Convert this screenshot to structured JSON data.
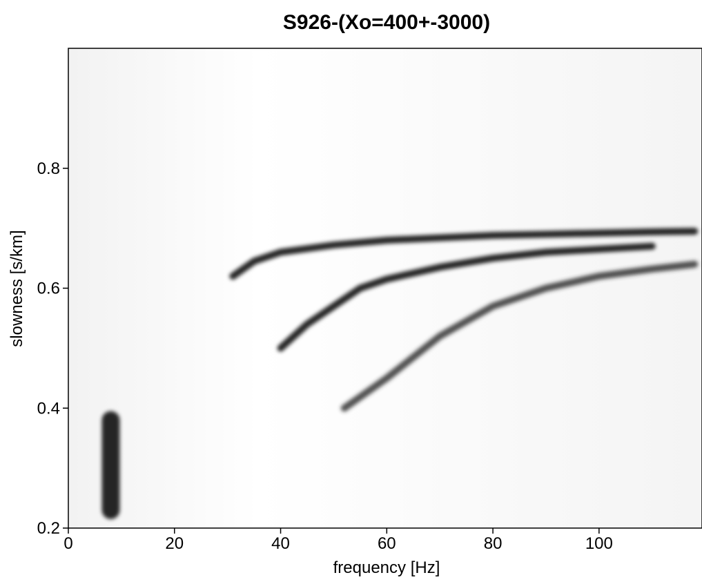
{
  "chart_data": {
    "type": "dispersion",
    "title": "S926-(Xo=400+-3000)",
    "xlabel": "frequency [Hz]",
    "ylabel": "slowness [s/km]",
    "xlim": [
      0,
      119.4
    ],
    "ylim": [
      0.2,
      1.0
    ],
    "xticks": [
      0,
      20,
      40,
      60,
      80,
      100
    ],
    "yticks": [
      0.2,
      0.4,
      0.6,
      0.8
    ],
    "series": [
      {
        "color": "#000000",
        "x": [
          31,
          35,
          40,
          50,
          60,
          70,
          80,
          90,
          100,
          110,
          118
        ],
        "values": [
          0.62,
          0.645,
          0.66,
          0.672,
          0.68,
          0.684,
          0.688,
          0.69,
          0.692,
          0.694,
          0.695
        ]
      },
      {
        "color": "#000000",
        "x": [
          40,
          45,
          50,
          55,
          60,
          70,
          80,
          90,
          100,
          110
        ],
        "values": [
          0.5,
          0.54,
          0.57,
          0.6,
          0.615,
          0.635,
          0.65,
          0.66,
          0.665,
          0.67
        ]
      },
      {
        "color": "#333333",
        "x": [
          52,
          60,
          70,
          80,
          90,
          100,
          110,
          118
        ],
        "values": [
          0.4,
          0.45,
          0.52,
          0.57,
          0.6,
          0.62,
          0.632,
          0.64
        ]
      },
      {
        "color": "#000000",
        "x": [
          8,
          8,
          8
        ],
        "values": [
          0.23,
          0.32,
          0.38
        ]
      }
    ]
  }
}
